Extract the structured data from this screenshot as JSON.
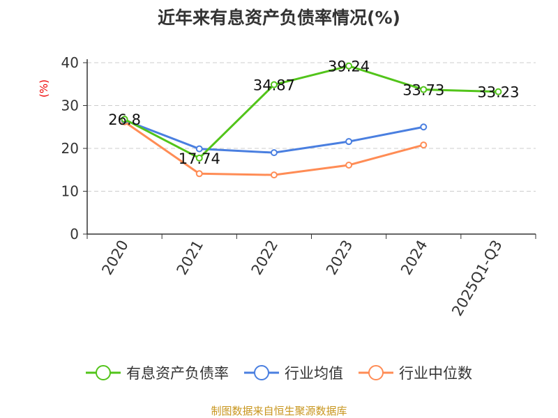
{
  "chart_data": {
    "type": "line",
    "title": "近年来有息资产负债率情况(%)",
    "ylabel": "(%)",
    "xlabel": "",
    "ylim": [
      0,
      40
    ],
    "yticks": [
      "0",
      "10",
      "20",
      "30",
      "40"
    ],
    "grid": true,
    "categories": [
      "2020",
      "2021",
      "2022",
      "2023",
      "2024",
      "2025Q1-Q3"
    ],
    "series": [
      {
        "name": "有息资产负债率",
        "color": "#52c41a",
        "values": [
          26.8,
          17.74,
          34.87,
          39.24,
          33.73,
          33.23
        ],
        "labels": [
          "26.8",
          "17.74",
          "34.87",
          "39.24",
          "33.73",
          "33.23"
        ]
      },
      {
        "name": "行业均值",
        "color": "#4a7fe0",
        "values": [
          26.6,
          19.9,
          19.0,
          21.6,
          25.0,
          null
        ]
      },
      {
        "name": "行业中位数",
        "color": "#ff8c55",
        "values": [
          26.2,
          14.1,
          13.8,
          16.1,
          20.8,
          null
        ]
      }
    ],
    "legend_position": "bottom"
  },
  "source": "制图数据来自恒生聚源数据库"
}
